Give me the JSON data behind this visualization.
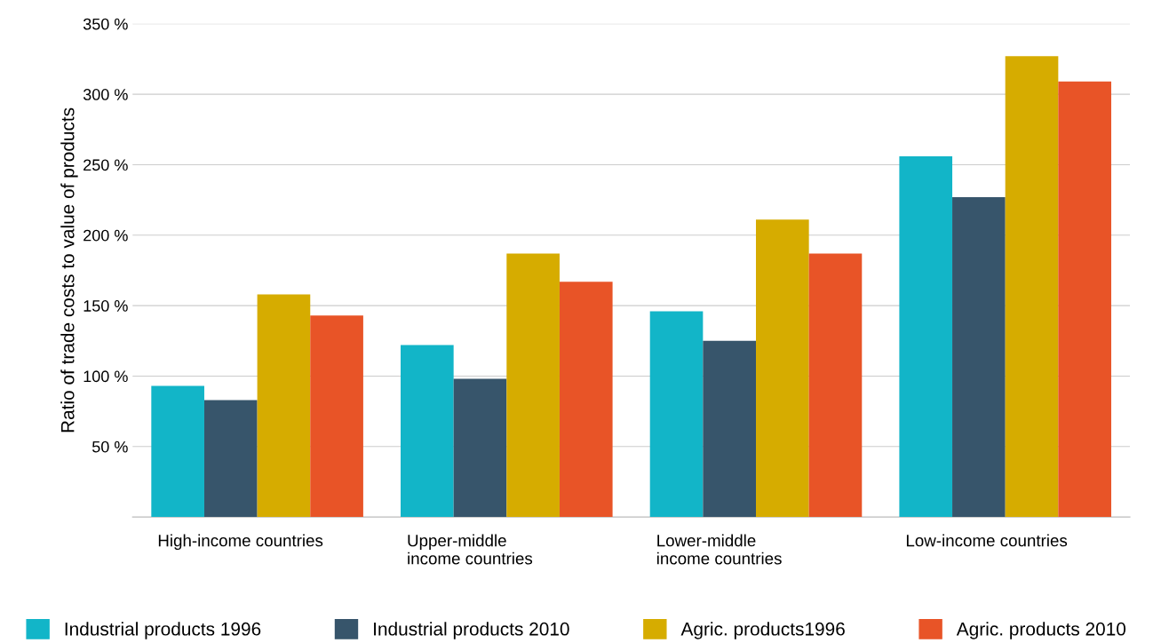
{
  "chart_data": {
    "type": "bar",
    "ylabel": "Ratio of trade costs to value of products",
    "categories": [
      "High-income countries",
      "Upper-middle\nincome countries",
      "Lower-middle\nincome countries",
      "Low-income countries"
    ],
    "series": [
      {
        "name": "Industrial products 1996",
        "color": "#12b5c8",
        "values": [
          93,
          122,
          146,
          256
        ]
      },
      {
        "name": "Industrial products 2010",
        "color": "#37556b",
        "values": [
          83,
          98,
          125,
          227
        ]
      },
      {
        "name": "Agric. products1996",
        "color": "#d6ac00",
        "values": [
          158,
          187,
          211,
          327
        ]
      },
      {
        "name": "Agric. products 2010",
        "color": "#e85427",
        "values": [
          143,
          167,
          187,
          309
        ]
      }
    ],
    "ylim": [
      0,
      350
    ],
    "yticks": [
      {
        "value": 50,
        "label": "50 %"
      },
      {
        "value": 100,
        "label": "100 %"
      },
      {
        "value": 150,
        "label": "150 %"
      },
      {
        "value": 200,
        "label": "200 %"
      },
      {
        "value": 250,
        "label": "250 %"
      },
      {
        "value": 300,
        "label": "300 %"
      },
      {
        "value": 350,
        "label": "350 %"
      }
    ],
    "grid": "y",
    "legend": "bottom"
  }
}
